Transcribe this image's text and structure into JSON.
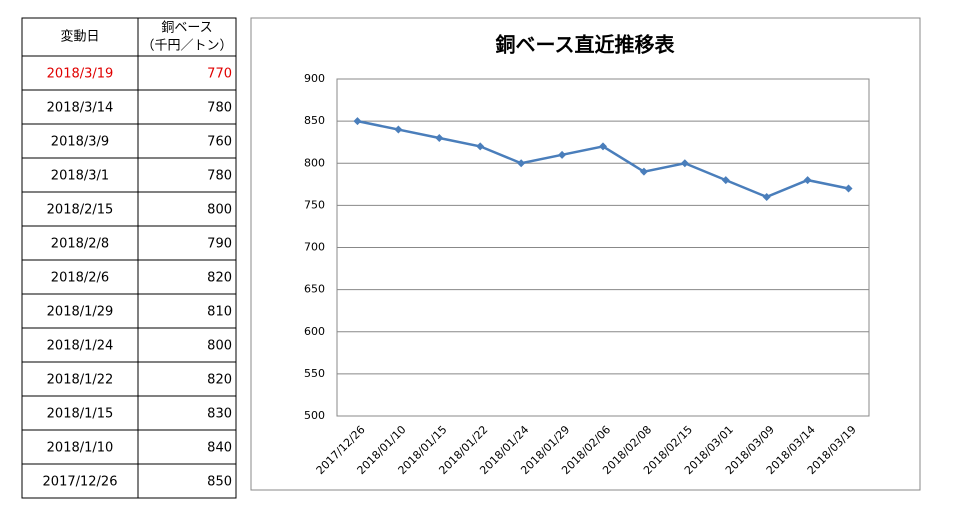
{
  "table": {
    "columns": {
      "date": "変動日",
      "price": [
        "銅ベース",
        "（千円／トン）"
      ]
    },
    "rows": [
      [
        "2018/3/19",
        770
      ],
      [
        "2018/3/14",
        780
      ],
      [
        "2018/3/9",
        760
      ],
      [
        "2018/3/1",
        780
      ],
      [
        "2018/2/15",
        800
      ],
      [
        "2018/2/8",
        790
      ],
      [
        "2018/2/6",
        820
      ],
      [
        "2018/1/29",
        810
      ],
      [
        "2018/1/24",
        800
      ],
      [
        "2018/1/22",
        820
      ],
      [
        "2018/1/15",
        830
      ],
      [
        "2018/1/10",
        840
      ],
      [
        "2017/12/26",
        850
      ]
    ],
    "highlight": {
      "row": 0,
      "color": "#e00000"
    }
  },
  "chart_data": {
    "type": "line",
    "title": "銅ベース直近推移表",
    "categories": [
      "2017/12/26",
      "2018/01/10",
      "2018/01/15",
      "2018/01/22",
      "2018/01/24",
      "2018/01/29",
      "2018/02/06",
      "2018/02/08",
      "2018/02/15",
      "2018/03/01",
      "2018/03/09",
      "2018/03/14",
      "2018/03/19"
    ],
    "values": [
      850,
      840,
      830,
      820,
      800,
      810,
      820,
      790,
      800,
      780,
      760,
      780,
      770
    ],
    "color": "#4a7ebb",
    "ylim": [
      500,
      900
    ],
    "yticks": [
      500,
      550,
      600,
      650,
      700,
      750,
      800,
      850,
      900
    ],
    "grid": true
  }
}
